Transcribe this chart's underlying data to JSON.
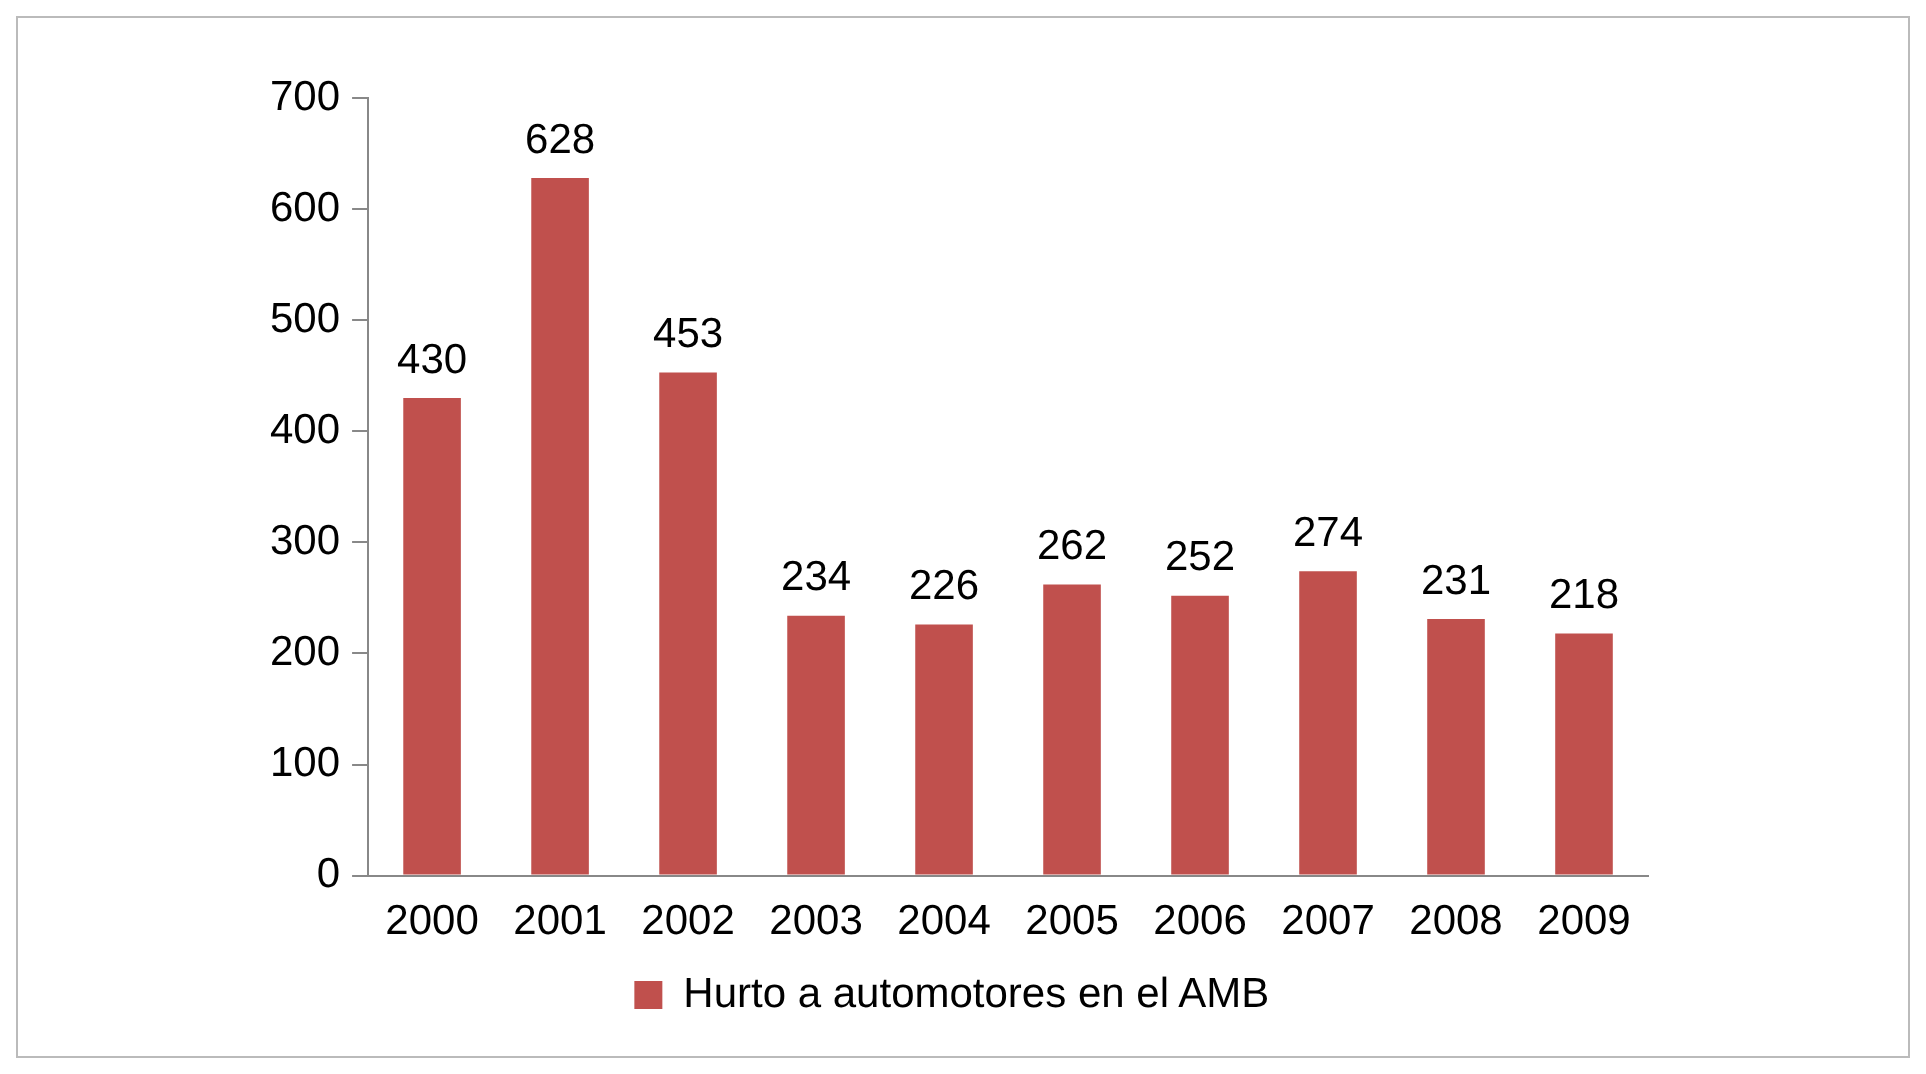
{
  "chart_data": {
    "type": "bar",
    "categories": [
      "2000",
      "2001",
      "2002",
      "2003",
      "2004",
      "2005",
      "2006",
      "2007",
      "2008",
      "2009"
    ],
    "series": [
      {
        "name": "Hurto a automotores en el AMB",
        "color": "#c0504d",
        "values": [
          430,
          628,
          453,
          234,
          226,
          262,
          252,
          274,
          231,
          218
        ]
      }
    ],
    "ylim": [
      0,
      700
    ],
    "yticks": [
      0,
      100,
      200,
      300,
      400,
      500,
      600,
      700
    ],
    "grid": false,
    "legend": "bottom",
    "data_labels": true
  }
}
